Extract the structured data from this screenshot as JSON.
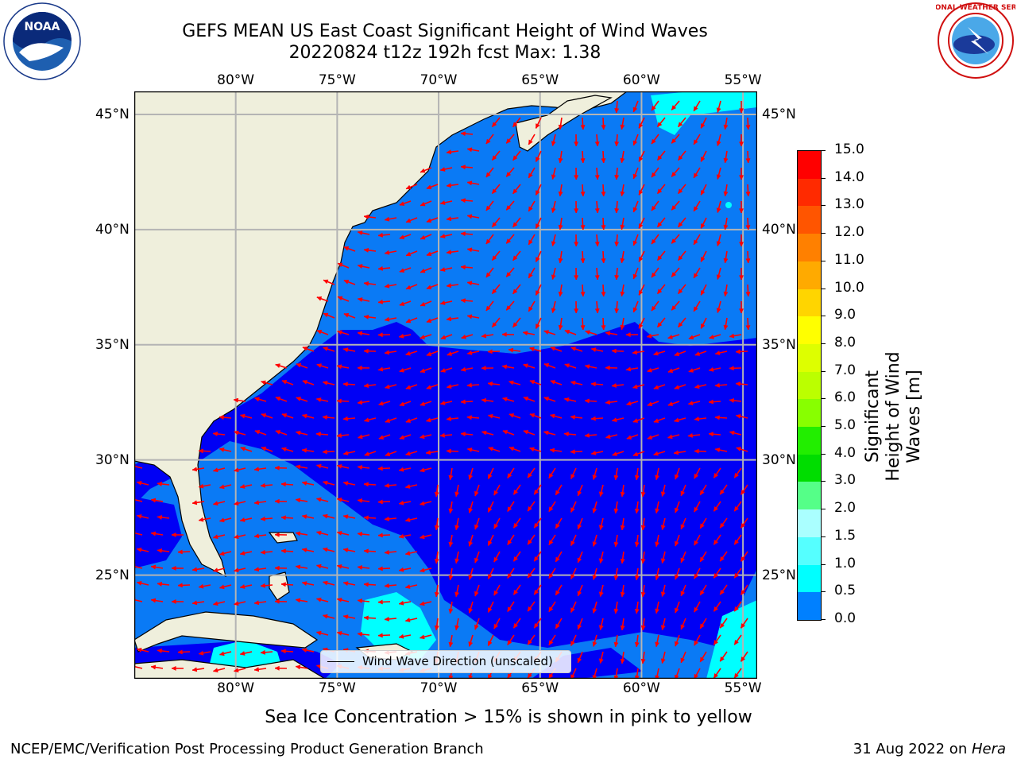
{
  "title": {
    "line1": "GEFS MEAN US East Coast Significant Height of Wind Waves",
    "line2": "20220824 t12z 192h fcst   Max: 1.38"
  },
  "subtitle": "Sea Ice Concentration > 15% is shown in pink to yellow",
  "footer": {
    "left": "NCEP/EMC/Verification Post Processing Product Generation Branch",
    "date": "31 Aug 2022 on ",
    "host": "Hera"
  },
  "logos": {
    "noaa": "NOAA",
    "nws": "NATIONAL WEATHER SERVICE"
  },
  "map": {
    "lon_labels": [
      "80°W",
      "75°W",
      "70°W",
      "65°W",
      "60°W",
      "55°W"
    ],
    "lat_labels": [
      "45°N",
      "40°N",
      "35°N",
      "30°N",
      "25°N"
    ],
    "lon_range": [
      -85,
      -54.3
    ],
    "lat_range": [
      20.5,
      46
    ],
    "colors": {
      "land": "#efefdc",
      "ocean_low": "#0000f5",
      "ocean_mid": "#0a7af5",
      "ocean_high": "#00ffff",
      "arrow": "#ff0000",
      "grid": "#b4b4b4"
    }
  },
  "legend": {
    "label": "Wind Wave Direction (unscaled)"
  },
  "colorbar": {
    "label_line1": "Significant Height of Wind",
    "label_line2": "Waves [m]",
    "ticks": [
      "15.0",
      "14.0",
      "13.0",
      "12.0",
      "11.0",
      "10.0",
      "9.0",
      "8.0",
      "7.0",
      "6.0",
      "5.0",
      "4.0",
      "3.0",
      "2.0",
      "1.5",
      "1.0",
      "0.5",
      "0.0"
    ],
    "colors": [
      "#ff0000",
      "#ff2a00",
      "#ff5500",
      "#ff8000",
      "#ffaa00",
      "#ffd500",
      "#ffff00",
      "#ddff00",
      "#bbff00",
      "#88ff00",
      "#22ee00",
      "#00dd00",
      "#55ff88",
      "#aaffff",
      "#55ffff",
      "#00ffff",
      "#0080ff",
      "#0000ff"
    ]
  }
}
